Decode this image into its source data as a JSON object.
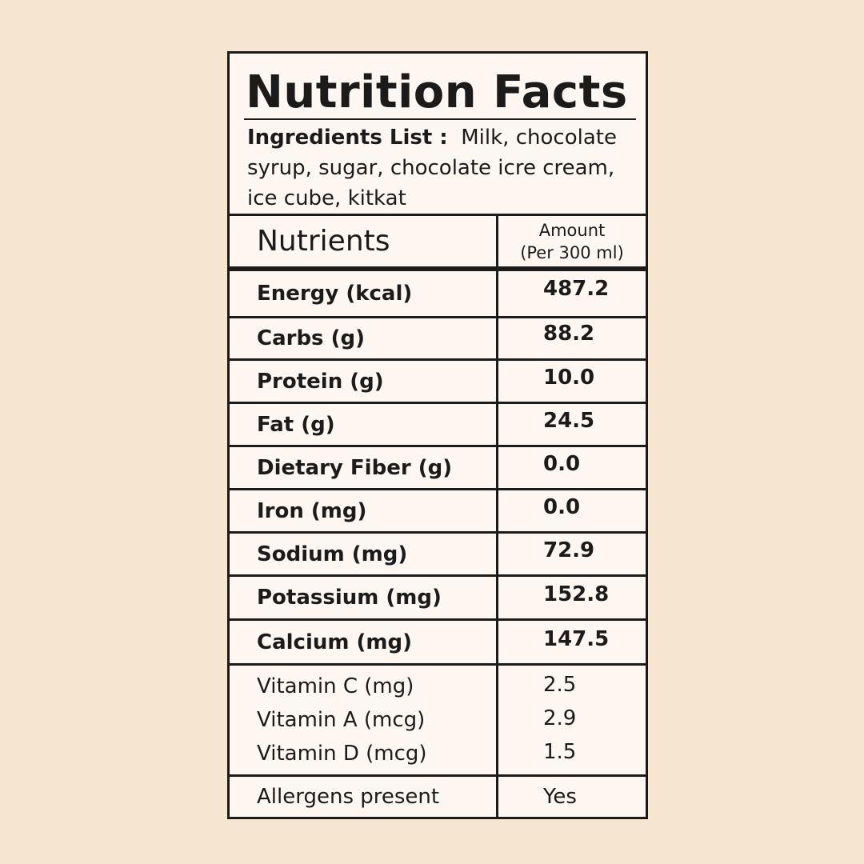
{
  "title": "Nutrition Facts",
  "ingredients": {
    "label": "Ingredients List :",
    "text": "Milk, chocolate syrup, sugar,  chocolate icre cream, ice cube, kitkat"
  },
  "header": {
    "nutrients_label": "Nutrients",
    "amount_label": "Amount",
    "amount_basis": "(Per 300 ml)"
  },
  "nutrients": [
    {
      "name": "Energy (kcal)",
      "value": "487.2"
    },
    {
      "name": "Carbs (g)",
      "value": "88.2"
    },
    {
      "name": "Protein (g)",
      "value": "10.0"
    },
    {
      "name": "Fat (g)",
      "value": "24.5"
    },
    {
      "name": "Dietary Fiber (g)",
      "value": "0.0"
    },
    {
      "name": "Iron (mg)",
      "value": "0.0"
    },
    {
      "name": "Sodium (mg)",
      "value": "72.9"
    },
    {
      "name": "Potassium (mg)",
      "value": "152.8"
    },
    {
      "name": "Calcium (mg)",
      "value": "147.5"
    }
  ],
  "vitamins": [
    {
      "name": "Vitamin C (mg)",
      "value": "2.5"
    },
    {
      "name": "Vitamin A (mcg)",
      "value": "2.9"
    },
    {
      "name": "Vitamin D (mcg)",
      "value": "1.5"
    }
  ],
  "allergens": {
    "label": "Allergens present",
    "value": "Yes"
  },
  "colors": {
    "background": "#f7e6cf",
    "label_background": "#fdf6f1",
    "ink": "#1b1b1b"
  }
}
